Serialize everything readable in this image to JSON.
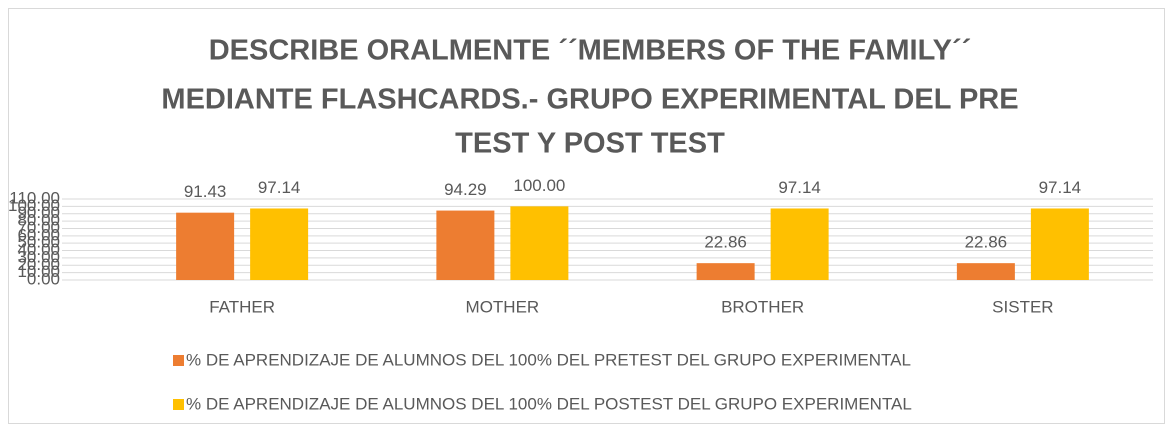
{
  "chart_data": {
    "type": "bar",
    "title": [
      "DESCRIBE ORALMENTE ´´MEMBERS OF THE FAMILY´´",
      "MEDIANTE FLASHCARDS.- GRUPO EXPERIMENTAL DEL PRE",
      "TEST Y POST TEST"
    ],
    "categories": [
      "FATHER",
      "MOTHER",
      "BROTHER",
      "SISTER"
    ],
    "series": [
      {
        "name": "% DE APRENDIZAJE DE ALUMNOS DEL 100% DEL PRETEST DEL GRUPO EXPERIMENTAL",
        "color": "#ed7d31",
        "values": [
          91.43,
          94.29,
          22.86,
          22.86
        ],
        "value_labels": [
          "91.43",
          "94.29",
          "22.86",
          "22.86"
        ]
      },
      {
        "name": "% DE APRENDIZAJE DE ALUMNOS DEL 100% DEL POSTEST DEL GRUPO EXPERIMENTAL",
        "color": "#ffc000",
        "values": [
          97.14,
          100,
          97.14,
          97.14
        ],
        "value_labels": [
          "97.14",
          "100.00",
          "97.14",
          "97.14"
        ]
      }
    ],
    "ylim": [
      0,
      110
    ],
    "yticks": [
      {
        "value": 0,
        "label": "0.00"
      },
      {
        "value": 10,
        "label": "10.00"
      },
      {
        "value": 20,
        "label": "20.00"
      },
      {
        "value": 30,
        "label": "30.00"
      },
      {
        "value": 40,
        "label": "40.00"
      },
      {
        "value": 50,
        "label": "50.00"
      },
      {
        "value": 60,
        "label": "60.00"
      },
      {
        "value": 70,
        "label": "70.00"
      },
      {
        "value": 80,
        "label": "80.00"
      },
      {
        "value": 90,
        "label": "90.00"
      },
      {
        "value": 100,
        "label": "100.00"
      },
      {
        "value": 110,
        "label": "110.00"
      }
    ],
    "grid": true
  }
}
